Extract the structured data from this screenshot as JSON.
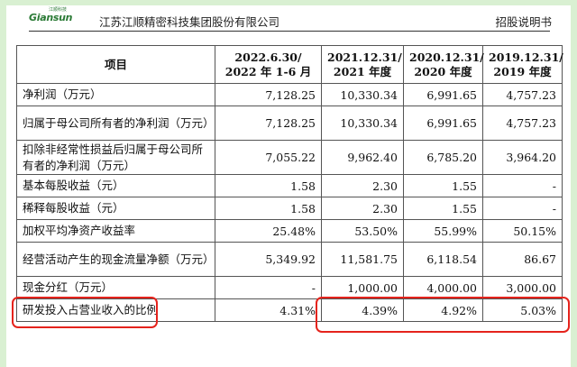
{
  "header": {
    "logo_text": "Giansun",
    "logo_sub": "江顺科技",
    "company": "江苏江顺精密科技集团股份有限公司",
    "doc_type": "招股说明书"
  },
  "table": {
    "columns": [
      "项目",
      "2022.6.30/\n2022 年 1-6 月",
      "2021.12.31/\n2021 年度",
      "2020.12.31/\n2020 年度",
      "2019.12.31/\n2019 年度"
    ],
    "rows": [
      {
        "label": "净利润（万元）",
        "values": [
          "7,128.25",
          "10,330.34",
          "6,991.65",
          "4,757.23"
        ]
      },
      {
        "label": "归属于母公司所有者的净利润（万元）",
        "values": [
          "7,128.25",
          "10,330.34",
          "6,991.65",
          "4,757.23"
        ]
      },
      {
        "label": "扣除非经常性损益后归属于母公司所有者的净利润（万元）",
        "values": [
          "7,055.22",
          "9,962.40",
          "6,785.20",
          "3,964.20"
        ]
      },
      {
        "label": "基本每股收益（元）",
        "values": [
          "1.58",
          "2.30",
          "1.55",
          "-"
        ]
      },
      {
        "label": "稀释每股收益（元）",
        "values": [
          "1.58",
          "2.30",
          "1.55",
          "-"
        ]
      },
      {
        "label": "加权平均净资产收益率",
        "values": [
          "25.48%",
          "53.50%",
          "55.99%",
          "50.15%"
        ]
      },
      {
        "label": "经营活动产生的现金流量净额（万元）",
        "values": [
          "5,349.92",
          "11,581.75",
          "6,118.54",
          "86.67"
        ]
      },
      {
        "label": "现金分红（万元）",
        "values": [
          "-",
          "1,000.00",
          "4,000.00",
          "3,000.00"
        ]
      },
      {
        "label": "研发投入占营业收入的比例",
        "values": [
          "4.31%",
          "4.39%",
          "4.92%",
          "5.03%"
        ]
      }
    ]
  },
  "colors": {
    "highlight": "#e5231c",
    "frame": "#d9f0d2",
    "logo": "#2a7a35"
  }
}
